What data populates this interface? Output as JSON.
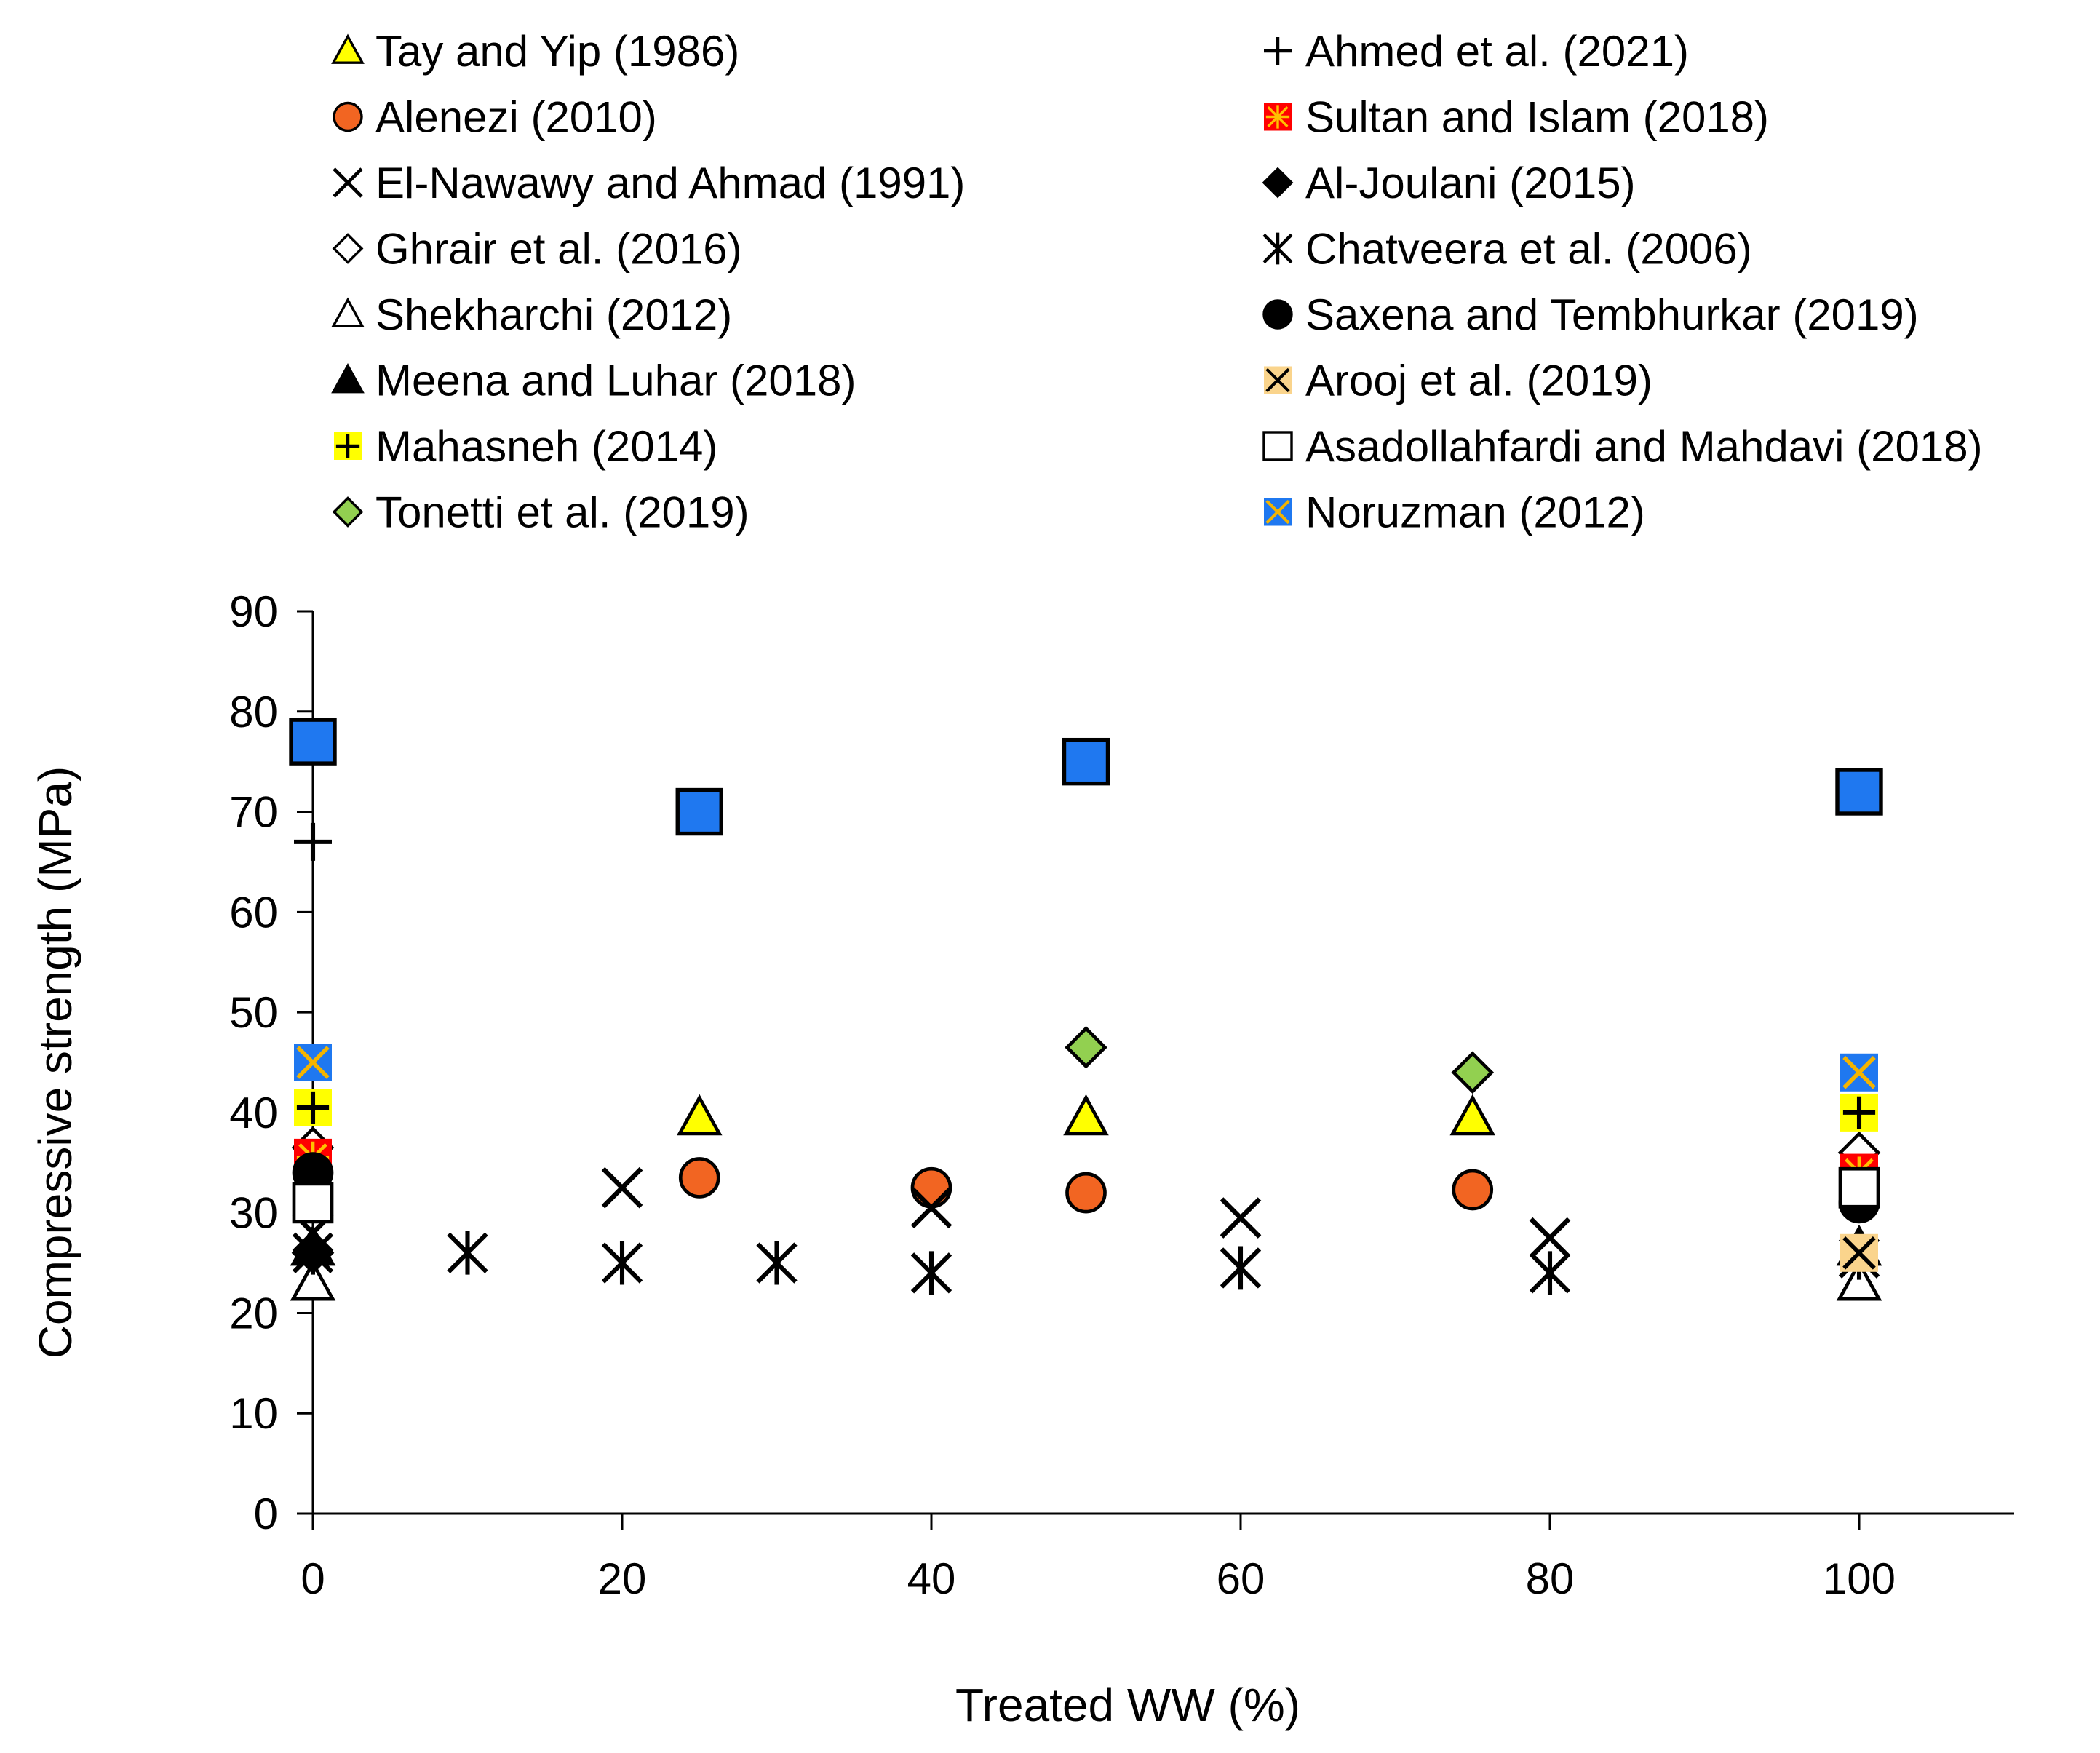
{
  "chart_data": {
    "type": "scatter",
    "title": "",
    "xlabel": "Treated WW (%)",
    "ylabel": "Compressive strength (MPa)",
    "xlim": [
      0,
      110
    ],
    "ylim": [
      0,
      90
    ],
    "xticks": [
      "0",
      "20",
      "40",
      "60",
      "80",
      "100"
    ],
    "yticks": [
      "0",
      "10",
      "20",
      "30",
      "40",
      "50",
      "60",
      "70",
      "80",
      "90"
    ],
    "grid": false,
    "legend_position": "top",
    "series": [
      {
        "name": "Tay and Yip (1986)",
        "marker": "triangle",
        "fill": "#ffff00",
        "stroke": "#000000",
        "points": [
          [
            25,
            39.5
          ],
          [
            50,
            39.5
          ],
          [
            75,
            39.5
          ]
        ]
      },
      {
        "name": "Alenezi (2010)",
        "marker": "circle",
        "fill": "#f26522",
        "stroke": "#000000",
        "points": [
          [
            25,
            33.5
          ],
          [
            40,
            32.5
          ],
          [
            50,
            32
          ],
          [
            75,
            32.3
          ]
        ]
      },
      {
        "name": "El-Nawawy and Ahmad (1991)",
        "marker": "x",
        "fill": "none",
        "stroke": "#000000",
        "points": [
          [
            0,
            28
          ],
          [
            20,
            32.5
          ],
          [
            40,
            30.5
          ],
          [
            60,
            29.5
          ],
          [
            80,
            27.5
          ]
        ]
      },
      {
        "name": "Ghrair et al. (2016)",
        "marker": "diamond",
        "fill": "#ffffff",
        "stroke": "#000000",
        "points": [
          [
            0,
            36.5
          ],
          [
            100,
            36
          ]
        ]
      },
      {
        "name": "Shekharchi (2012)",
        "marker": "triangle",
        "fill": "#ffffff",
        "stroke": "#000000",
        "points": [
          [
            0,
            23
          ],
          [
            100,
            23
          ]
        ]
      },
      {
        "name": "Meena and Luhar (2018)",
        "marker": "triangle",
        "fill": "#000000",
        "stroke": "#000000",
        "points": [
          [
            0,
            26.5
          ],
          [
            100,
            26.5
          ]
        ]
      },
      {
        "name": "Mahasneh (2014)",
        "marker": "plus-square",
        "fill": "#ffff00",
        "stroke": "#000000",
        "points": [
          [
            0,
            40.5
          ],
          [
            100,
            40
          ]
        ]
      },
      {
        "name": "Tonetti et al. (2019)",
        "marker": "diamond",
        "fill": "#92d050",
        "stroke": "#000000",
        "points": [
          [
            50,
            46.5
          ],
          [
            75,
            44
          ]
        ]
      },
      {
        "name": "Ahmed et al. (2021)",
        "marker": "plus",
        "fill": "none",
        "stroke": "#000000",
        "points": [
          [
            0,
            67
          ]
        ]
      },
      {
        "name": "Sultan and Islam (2018)",
        "marker": "asterisk-square",
        "fill": "#ff0000",
        "stroke": "#ffc000",
        "points": [
          [
            0,
            35.5
          ],
          [
            100,
            34
          ]
        ]
      },
      {
        "name": "Al-Joulani (2015)",
        "marker": "diamond",
        "fill": "#000000",
        "stroke": "#000000",
        "points": [
          [
            0,
            26
          ]
        ]
      },
      {
        "name": "Chatveera et al. (2006)",
        "marker": "asterisk",
        "fill": "none",
        "stroke": "#000000",
        "points": [
          [
            0,
            26
          ],
          [
            10,
            26
          ],
          [
            20,
            25
          ],
          [
            30,
            25
          ],
          [
            40,
            24
          ],
          [
            60,
            24.5
          ],
          [
            80,
            24
          ],
          [
            100,
            25.5
          ]
        ]
      },
      {
        "name": "Saxena and Tembhurkar (2019)",
        "marker": "circle",
        "fill": "#000000",
        "stroke": "#000000",
        "points": [
          [
            0,
            34
          ],
          [
            100,
            31
          ]
        ]
      },
      {
        "name": "Arooj et al. (2019)",
        "marker": "x-square",
        "fill": "#fad48c",
        "stroke": "#000000",
        "points": [
          [
            100,
            26
          ]
        ]
      },
      {
        "name": "Asadollahfardi and Mahdavi (2018)",
        "marker": "square",
        "fill": "#ffffff",
        "stroke": "#000000",
        "points": [
          [
            0,
            31
          ],
          [
            100,
            32.5
          ]
        ]
      },
      {
        "name": "Noruzman (2012)",
        "marker": "x-square",
        "fill": "#1f78f0",
        "stroke": "#f4b400",
        "points": [
          [
            0,
            45
          ],
          [
            100,
            44
          ]
        ]
      },
      {
        "name": "",
        "marker": "square",
        "fill": "#1f78f0",
        "stroke": "#000000",
        "points": [
          [
            0,
            77
          ],
          [
            25,
            70
          ],
          [
            50,
            75
          ],
          [
            100,
            72
          ]
        ]
      }
    ]
  }
}
